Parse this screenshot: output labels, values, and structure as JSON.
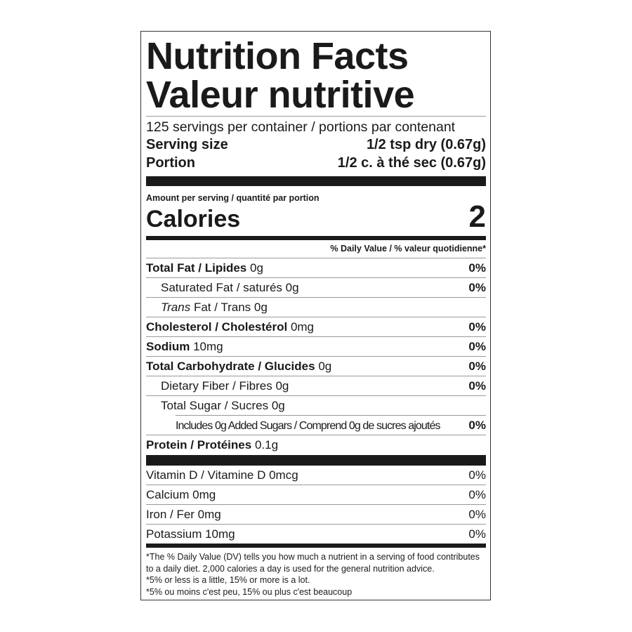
{
  "title_en": "Nutrition Facts",
  "title_fr": "Valeur nutritive",
  "servings": "125 servings per container / portions par contenant",
  "serving_size": {
    "label": "Serving size",
    "value": "1/2 tsp dry (0.67g)"
  },
  "portion": {
    "label": "Portion",
    "value": "1/2 c. à thé sec (0.67g)"
  },
  "amount_per_serving": "Amount per serving / quantité par portion",
  "calories": {
    "label": "Calories",
    "value": "2"
  },
  "dv_header": "% Daily Value / % valeur quotidienne*",
  "nutrients": [
    {
      "name": "Total Fat / Lipides",
      "amount": "0g",
      "dv": "0%"
    },
    {
      "name": "Saturated Fat / saturés",
      "amount": "0g",
      "dv": "0%"
    },
    {
      "name_italic": "Trans",
      "name": "Fat / Trans",
      "amount": "0g",
      "dv": ""
    },
    {
      "name": "Cholesterol / Cholestérol",
      "amount": "0mg",
      "dv": "0%"
    },
    {
      "name": "Sodium",
      "amount": "10mg",
      "dv": "0%"
    },
    {
      "name": "Total Carbohydrate / Glucides",
      "amount": "0g",
      "dv": "0%"
    },
    {
      "name": "Dietary Fiber / Fibres",
      "amount": "0g",
      "dv": "0%"
    },
    {
      "name": "Total Sugar / Sucres",
      "amount": "0g",
      "dv": ""
    },
    {
      "name": "Includes 0g Added Sugars / Comprend 0g de sucres ajoutés",
      "amount": "",
      "dv": "0%"
    },
    {
      "name": "Protein / Protéines",
      "amount": "0.1g",
      "dv": ""
    }
  ],
  "vitamins": [
    {
      "name": "Vitamin D / Vitamine D 0mcg",
      "dv": "0%"
    },
    {
      "name": "Calcium 0mg",
      "dv": "0%"
    },
    {
      "name": "Iron / Fer 0mg",
      "dv": "0%"
    },
    {
      "name": "Potassium 10mg",
      "dv": "0%"
    }
  ],
  "footnotes": [
    "*The % Daily Value (DV) tells you how much a nutrient in a serving of food contributes to a daily diet. 2,000 calories a day is used for the general nutrition advice.",
    "*5% or less is a little, 15% or more is a lot.",
    "*5% ou moins c'est peu, 15% ou plus c'est beaucoup"
  ]
}
